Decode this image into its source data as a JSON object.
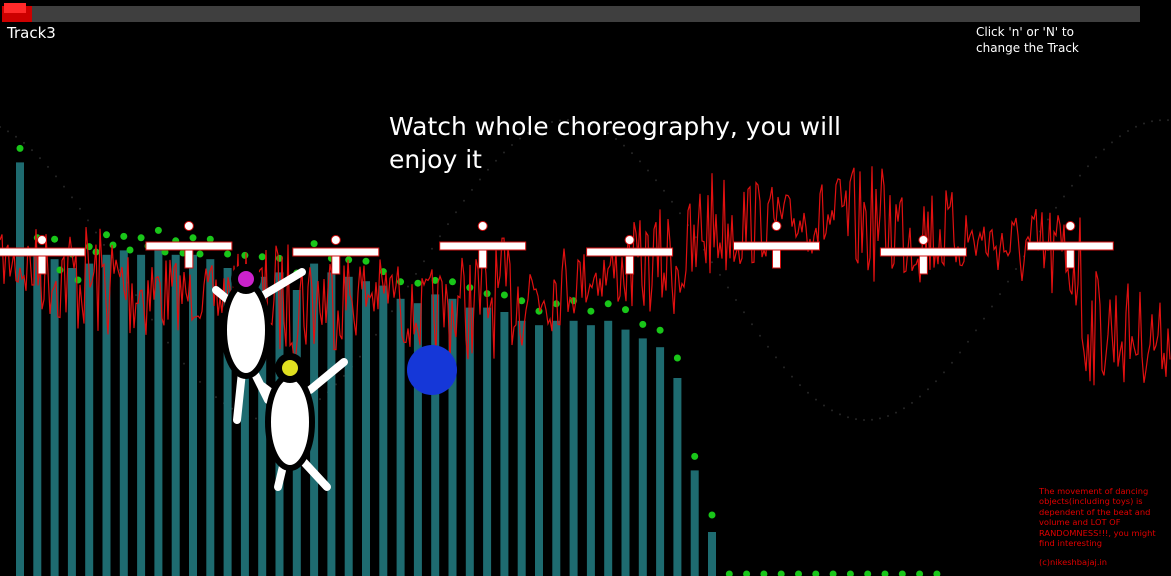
{
  "progress": {
    "fraction": 0.026
  },
  "track_label": "Track3",
  "hint": "Click 'n' or 'N' to\nchange the Track",
  "headline": "Watch whole choreography, you will\nenjoy it",
  "disclaimer": "The movement of dancing objects(including toys) is dependent of the beat and volume and LOT OF RANDOMNESS!!!, you might find interesting",
  "credit": "(c)nikeshbajaj.in",
  "colors": {
    "bars": "#1e6b70",
    "peak_dots": "#19c619",
    "waveform": "#e01010",
    "ball": "#1537d8",
    "toy_body": "#f5f5f5",
    "toy_head_1": "#cc22cc",
    "toy_head_2": "#e0e020",
    "toy_limbs": "#ffffff"
  },
  "spectrum": {
    "levels": [
      0.94,
      0.73,
      0.72,
      0.7,
      0.71,
      0.73,
      0.74,
      0.73,
      0.74,
      0.73,
      0.73,
      0.72,
      0.7,
      0.69,
      0.68,
      0.69,
      0.65,
      0.71,
      0.69,
      0.68,
      0.67,
      0.66,
      0.63,
      0.62,
      0.64,
      0.63,
      0.61,
      0.61,
      0.6,
      0.58,
      0.57,
      0.58,
      0.58,
      0.57,
      0.58,
      0.56,
      0.54,
      0.52,
      0.45,
      0.24,
      0.1,
      0,
      0,
      0,
      0,
      0,
      0,
      0,
      0,
      0,
      0,
      0,
      0,
      0
    ]
  },
  "toys": [
    {
      "name": "toy-1",
      "icon": "penguin-toy-icon"
    },
    {
      "name": "toy-2",
      "icon": "penguin-toy-icon"
    }
  ],
  "ball": {
    "icon": "ball-icon"
  },
  "crosses": {
    "count": 8,
    "icon": "cross-marker-icon"
  }
}
